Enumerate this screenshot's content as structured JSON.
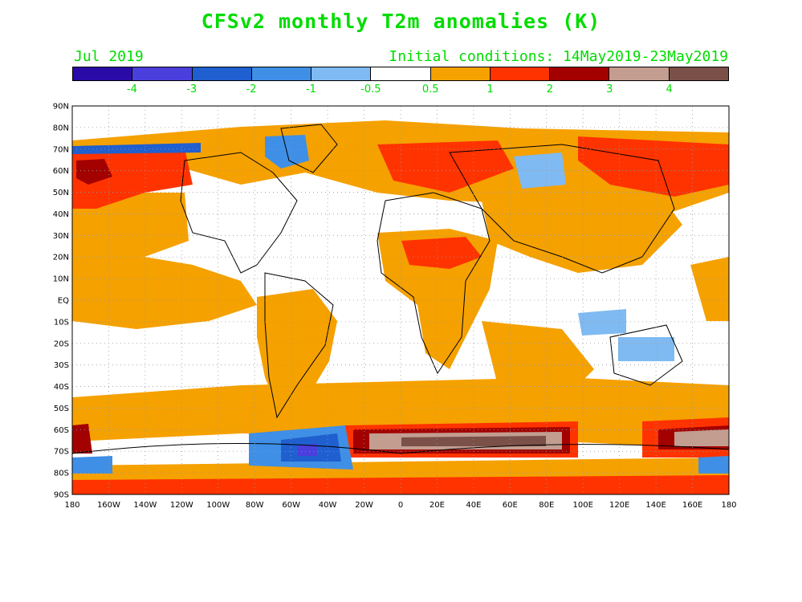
{
  "title": "CFSv2 monthly T2m anomalies (K)",
  "valid_month": "Jul 2019",
  "initial_conditions": "Initial conditions: 14May2019-23May2019",
  "colorbar": {
    "colors": [
      "#2a0ba8",
      "#4a3fdc",
      "#1f5fcf",
      "#3f8fe6",
      "#7fbaf2",
      "#ffffff",
      "#f5a100",
      "#ff3300",
      "#a30000",
      "#c29d90",
      "#7a5048"
    ],
    "labels": [
      "-4",
      "-3",
      "-2",
      "-1",
      "-0.5",
      "0.5",
      "1",
      "2",
      "3",
      "4"
    ]
  },
  "map": {
    "lat_labels": [
      "90N",
      "80N",
      "70N",
      "60N",
      "50N",
      "40N",
      "30N",
      "20N",
      "10N",
      "EQ",
      "10S",
      "20S",
      "30S",
      "40S",
      "50S",
      "60S",
      "70S",
      "80S",
      "90S"
    ],
    "lon_labels": [
      "180",
      "160W",
      "140W",
      "120W",
      "100W",
      "80W",
      "60W",
      "40W",
      "20W",
      "0",
      "20E",
      "40E",
      "60E",
      "80E",
      "100E",
      "120E",
      "140E",
      "160E",
      "180"
    ]
  }
}
